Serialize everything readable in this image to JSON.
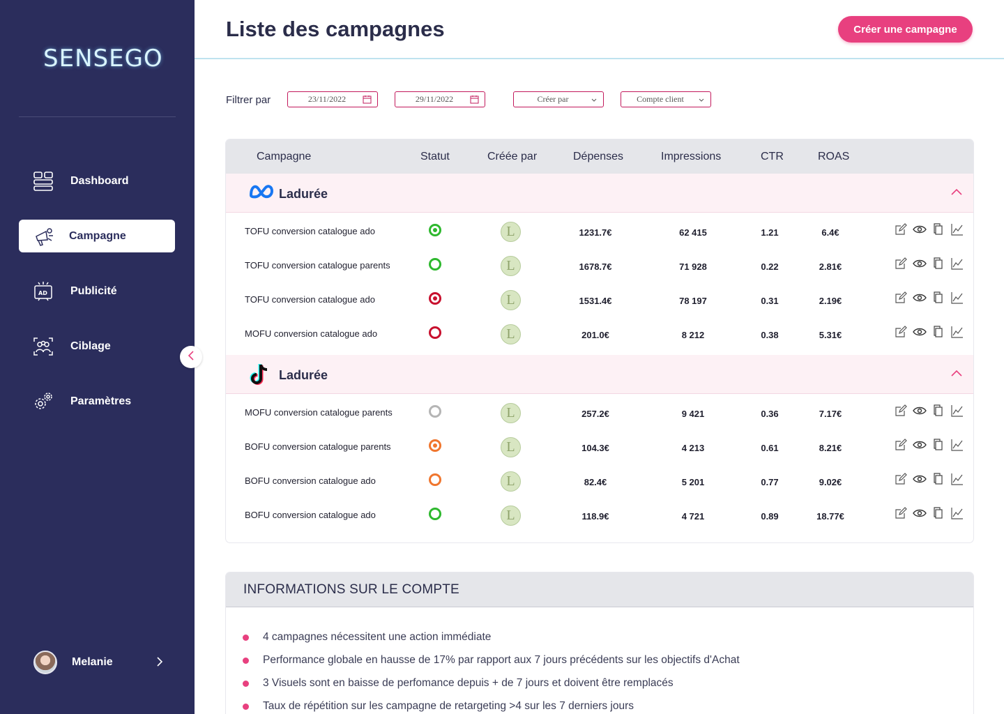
{
  "sidebar": {
    "logo": "SENSEGO",
    "items": [
      {
        "label": "Dashboard",
        "icon": "dashboard-icon"
      },
      {
        "label": "Campagne",
        "icon": "megaphone-icon",
        "active": true
      },
      {
        "label": "Publicité",
        "icon": "ad-icon"
      },
      {
        "label": "Ciblage",
        "icon": "audience-icon"
      },
      {
        "label": "Paramètres",
        "icon": "gear-icon"
      }
    ],
    "user": {
      "name": "Melanie"
    }
  },
  "header": {
    "title": "Liste des campagnes",
    "create_button": "Créer une campagne"
  },
  "filters": {
    "label": "Filtrer par",
    "date_start": "23/11/2022",
    "date_end": "29/11/2022",
    "created_by": "Créer par",
    "client_account": "Compte client"
  },
  "table": {
    "columns": [
      "Campagne",
      "Statut",
      "Créée par",
      "Dépenses",
      "Impressions",
      "CTR",
      "ROAS"
    ],
    "groups": [
      {
        "platform": "meta",
        "name": "Ladurée",
        "rows": [
          {
            "name": "TOFU conversion catalogue ado",
            "status": "active",
            "status_color": "#2eb82e",
            "creator": "L",
            "spend": "1231.7€",
            "impressions": "62 415",
            "ctr": "1.21",
            "roas": "6.4€"
          },
          {
            "name": "TOFU conversion catalogue parents",
            "status": "ring",
            "status_color": "#2eb82e",
            "creator": "L",
            "spend": "1678.7€",
            "impressions": "71 928",
            "ctr": "0.22",
            "roas": "2.81€"
          },
          {
            "name": "TOFU conversion catalogue ado",
            "status": "active",
            "status_color": "#c8102e",
            "creator": "L",
            "spend": "1531.4€",
            "impressions": "78 197",
            "ctr": "0.31",
            "roas": "2.19€"
          },
          {
            "name": "MOFU conversion catalogue ado",
            "status": "ring",
            "status_color": "#c8102e",
            "creator": "L",
            "spend": "201.0€",
            "impressions": "8 212",
            "ctr": "0.38",
            "roas": "5.31€"
          }
        ]
      },
      {
        "platform": "tiktok",
        "name": "Ladurée",
        "rows": [
          {
            "name": "MOFU conversion catalogue parents",
            "status": "ring",
            "status_color": "#b5b5b5",
            "creator": "L",
            "spend": "257.2€",
            "impressions": "9 421",
            "ctr": "0.36",
            "roas": "7.17€"
          },
          {
            "name": "BOFU conversion catalogue parents",
            "status": "active",
            "status_color": "#f0762e",
            "creator": "L",
            "spend": "104.3€",
            "impressions": "4 213",
            "ctr": "0.61",
            "roas": "8.21€"
          },
          {
            "name": "BOFU conversion catalogue ado",
            "status": "ring",
            "status_color": "#f0762e",
            "creator": "L",
            "spend": "82.4€",
            "impressions": "5 201",
            "ctr": "0.77",
            "roas": "9.02€"
          },
          {
            "name": "BOFU conversion catalogue ado",
            "status": "ring",
            "status_color": "#2eb82e",
            "creator": "L",
            "spend": "118.9€",
            "impressions": "4 721",
            "ctr": "0.89",
            "roas": "18.77€"
          }
        ]
      }
    ]
  },
  "info": {
    "title": "INFORMATIONS SUR LE COMPTE",
    "items": [
      "4 campagnes nécessitent une action immédiate",
      "Performance globale en hausse de 17% par rapport aux 7 jours précédents sur les objectifs d'Achat",
      "3 Visuels sont en baisse de perfomance depuis + de 7 jours et doivent être remplacés",
      "Taux de répétition sur les campagne de retargeting >4 sur les 7 derniers jours"
    ]
  },
  "colors": {
    "sidebar_bg": "#2b2d5c",
    "accent": "#e8407f",
    "header_line": "#bfe3ef"
  }
}
